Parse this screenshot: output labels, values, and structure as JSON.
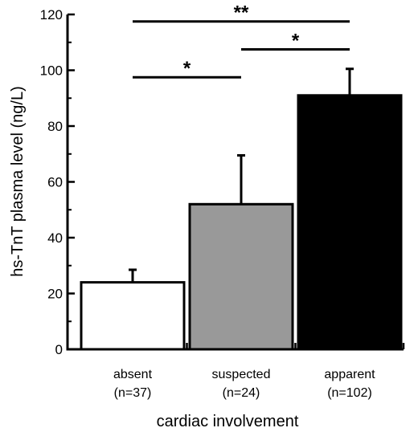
{
  "chart_data": {
    "type": "bar",
    "title": "",
    "xlabel": "cardiac involvement",
    "ylabel": "hs-TnT plasma level (ng/L)",
    "ylim": [
      0,
      120
    ],
    "yticks": [
      0,
      20,
      40,
      60,
      80,
      100,
      120
    ],
    "categories": [
      {
        "name": "absent",
        "n": "(n=37)"
      },
      {
        "name": "suspected",
        "n": "(n=24)"
      },
      {
        "name": "apparent",
        "n": "(n=102)"
      }
    ],
    "values": [
      24,
      52,
      91
    ],
    "error_upper": [
      28.5,
      69.5,
      100.5
    ],
    "bar_colors": [
      "#ffffff",
      "#999999",
      "#000000"
    ],
    "significance": [
      {
        "from": 0,
        "to": 1,
        "label": "*",
        "y": 97.5
      },
      {
        "from": 1,
        "to": 2,
        "label": "*",
        "y": 107.5
      },
      {
        "from": 0,
        "to": 2,
        "label": "**",
        "y": 117.5
      }
    ],
    "grid": false,
    "legend": "none"
  }
}
